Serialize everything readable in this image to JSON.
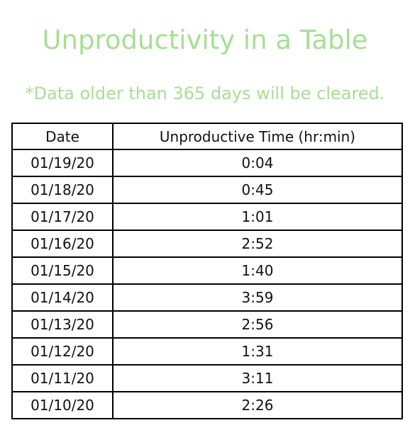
{
  "title": "Unproductivity in a Table",
  "note": "*Data older than 365 days will be cleared.",
  "colors": {
    "accent": "#a6df94",
    "border": "#000000",
    "text": "#111111"
  },
  "table": {
    "headers": [
      "Date",
      "Unproductive Time (hr:min)"
    ],
    "rows": [
      {
        "date": "01/19/20",
        "time": "0:04"
      },
      {
        "date": "01/18/20",
        "time": "0:45"
      },
      {
        "date": "01/17/20",
        "time": "1:01"
      },
      {
        "date": "01/16/20",
        "time": "2:52"
      },
      {
        "date": "01/15/20",
        "time": "1:40"
      },
      {
        "date": "01/14/20",
        "time": "3:59"
      },
      {
        "date": "01/13/20",
        "time": "2:56"
      },
      {
        "date": "01/12/20",
        "time": "1:31"
      },
      {
        "date": "01/11/20",
        "time": "3:11"
      },
      {
        "date": "01/10/20",
        "time": "2:26"
      }
    ]
  }
}
